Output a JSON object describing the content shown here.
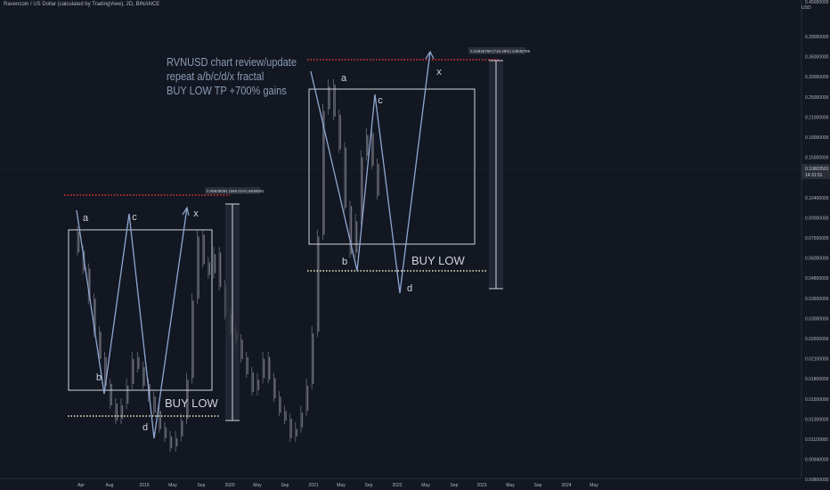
{
  "header": {
    "title": "Ravencoin / US Dollar (calculated by TradingView), 2D, BINANCE",
    "currency": "USD"
  },
  "annotation": {
    "lines": [
      "RVNUSD chart review/update",
      "repeat a/b/c/d/x fractal",
      "BUY LOW TP +700% gains"
    ]
  },
  "colors": {
    "background": "#131722",
    "candle": "#6b6e78",
    "pattern_line": "#8fa8cf",
    "box": "#d1d4dc",
    "resistance": "#e53935",
    "support": "#f5f0c8",
    "text": "#b2b5be",
    "measure_bg": "#2a2e39"
  },
  "chart_data": {
    "type": "line",
    "title": "Ravencoin / US Dollar (calculated by TradingView), 2D, BINANCE",
    "ylabel": "USD",
    "y_scale": "log",
    "grid": false,
    "x_ticks": [
      "Apr",
      "Aug",
      "2019",
      "May",
      "Sep",
      "2020",
      "May",
      "Sep",
      "2021",
      "May",
      "Sep",
      "2022",
      "May",
      "Sep",
      "2023",
      "May",
      "Sep",
      "2024",
      "May"
    ],
    "y_ticks": [
      "0.39000000",
      "0.36000000",
      "0.30000000",
      "0.25000000",
      "0.21000000",
      "0.18000000",
      "0.15000000",
      "0.12500000",
      "0.10400000",
      "0.09000000",
      "0.07500000",
      "0.06000000",
      "0.04800000",
      "0.03600000",
      "0.03000000",
      "0.02500000",
      "0.02100000",
      "0.01800000",
      "0.01500000",
      "0.01300000",
      "0.01100000",
      "0.00940000",
      "0.00800000",
      "0.00680000"
    ],
    "y_ticks_first": "0.45000000",
    "current_price": "0.10603501",
    "countdown": "14:31:51",
    "measure_labels": [
      "0.08636091 (659.01%) 6636091",
      "0.24945769 (716.48%) 24945769"
    ],
    "fractal_labels": [
      "a",
      "b",
      "c",
      "x",
      "d",
      "a",
      "c",
      "b",
      "d",
      "x"
    ],
    "buy_low_labels": [
      "BUY LOW",
      "BUY LOW"
    ],
    "price_series": [
      {
        "t": 0,
        "p": 0.072
      },
      {
        "t": 2,
        "p": 0.061
      },
      {
        "t": 4,
        "p": 0.052
      },
      {
        "t": 6,
        "p": 0.04
      },
      {
        "t": 8,
        "p": 0.03
      },
      {
        "t": 10,
        "p": 0.024
      },
      {
        "t": 12,
        "p": 0.019
      },
      {
        "t": 14,
        "p": 0.016
      },
      {
        "t": 16,
        "p": 0.014
      },
      {
        "t": 18,
        "p": 0.016
      },
      {
        "t": 20,
        "p": 0.019
      },
      {
        "t": 22,
        "p": 0.024
      },
      {
        "t": 24,
        "p": 0.022
      },
      {
        "t": 26,
        "p": 0.019
      },
      {
        "t": 28,
        "p": 0.017
      },
      {
        "t": 30,
        "p": 0.015
      },
      {
        "t": 32,
        "p": 0.013
      },
      {
        "t": 34,
        "p": 0.012
      },
      {
        "t": 36,
        "p": 0.011
      },
      {
        "t": 38,
        "p": 0.012
      },
      {
        "t": 40,
        "p": 0.014
      },
      {
        "t": 42,
        "p": 0.02
      },
      {
        "t": 44,
        "p": 0.04
      },
      {
        "t": 46,
        "p": 0.07
      },
      {
        "t": 48,
        "p": 0.055
      },
      {
        "t": 50,
        "p": 0.05
      },
      {
        "t": 52,
        "p": 0.06
      },
      {
        "t": 54,
        "p": 0.045
      },
      {
        "t": 56,
        "p": 0.035
      },
      {
        "t": 58,
        "p": 0.03
      },
      {
        "t": 60,
        "p": 0.028
      },
      {
        "t": 62,
        "p": 0.024
      },
      {
        "t": 64,
        "p": 0.021
      },
      {
        "t": 66,
        "p": 0.018
      },
      {
        "t": 68,
        "p": 0.02
      },
      {
        "t": 70,
        "p": 0.024
      },
      {
        "t": 72,
        "p": 0.02
      },
      {
        "t": 74,
        "p": 0.017
      },
      {
        "t": 76,
        "p": 0.015
      },
      {
        "t": 78,
        "p": 0.014
      },
      {
        "t": 80,
        "p": 0.012
      },
      {
        "t": 82,
        "p": 0.013
      },
      {
        "t": 84,
        "p": 0.015
      },
      {
        "t": 86,
        "p": 0.019
      },
      {
        "t": 88,
        "p": 0.03
      },
      {
        "t": 90,
        "p": 0.07
      },
      {
        "t": 92,
        "p": 0.21
      },
      {
        "t": 94,
        "p": 0.26
      },
      {
        "t": 96,
        "p": 0.2
      },
      {
        "t": 98,
        "p": 0.15
      },
      {
        "t": 100,
        "p": 0.09
      },
      {
        "t": 102,
        "p": 0.06
      },
      {
        "t": 104,
        "p": 0.08
      },
      {
        "t": 106,
        "p": 0.14
      },
      {
        "t": 108,
        "p": 0.17
      },
      {
        "t": 110,
        "p": 0.13
      },
      {
        "t": 112,
        "p": 0.1
      }
    ]
  }
}
